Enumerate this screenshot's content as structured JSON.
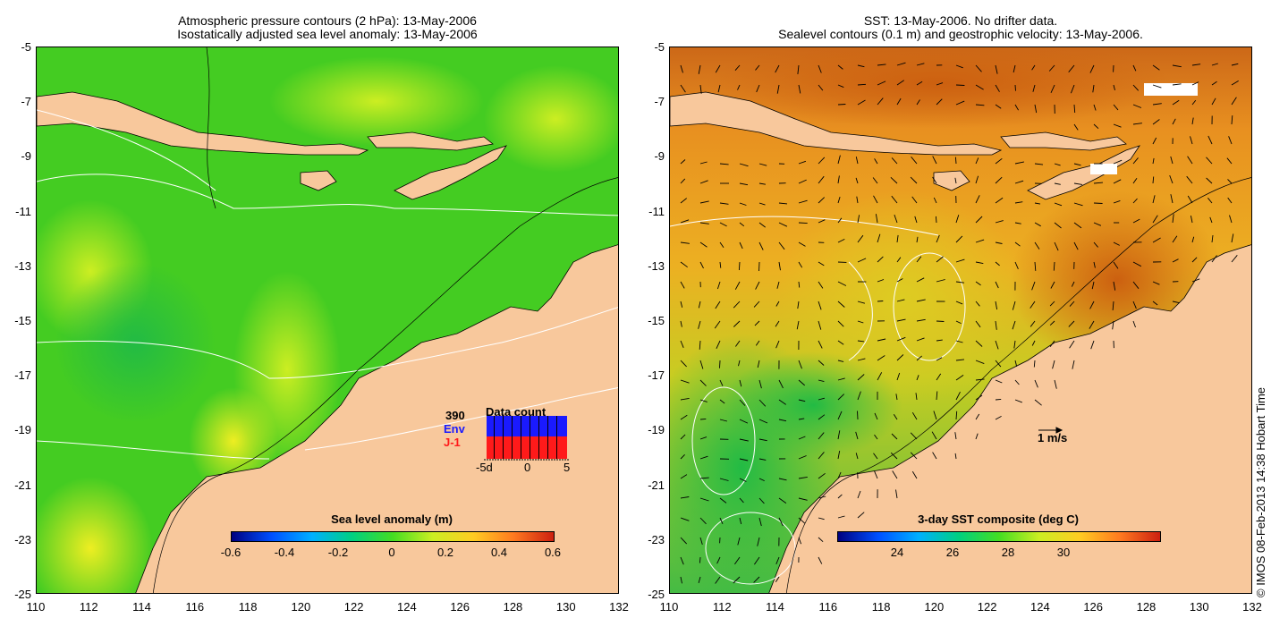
{
  "left": {
    "title_line1": "Atmospheric pressure contours (2 hPa): 13-May-2006",
    "title_line2": "Isostatically adjusted sea level anomaly: 13-May-2006",
    "colorbar_title": "Sea level anomaly (m)",
    "colorbar_ticks": [
      "-0.6",
      "-0.4",
      "-0.2",
      "0",
      "0.2",
      "0.4",
      "0.6"
    ],
    "inset": {
      "count": "390",
      "env_label": "Env",
      "j1_label": "J-1",
      "title": "Data count",
      "xticks": [
        "-5d",
        "0",
        "5"
      ],
      "env_color": "#1a1aff",
      "j1_color": "#ff1a1a"
    }
  },
  "right": {
    "title_line1": "SST: 13-May-2006. No drifter data.",
    "title_line2": "Sealevel contours (0.1 m) and geostrophic velocity: 13-May-2006.",
    "colorbar_title": "3-day SST composite (deg C)",
    "colorbar_ticks": [
      "24",
      "26",
      "28",
      "30"
    ],
    "velocity_scale_label": "1 m/s"
  },
  "axes": {
    "y_ticks": [
      "-5",
      "-7",
      "-9",
      "-11",
      "-13",
      "-15",
      "-17",
      "-19",
      "-21",
      "-23",
      "-25"
    ],
    "x_ticks": [
      "110",
      "112",
      "114",
      "116",
      "118",
      "120",
      "122",
      "124",
      "126",
      "128",
      "130",
      "132"
    ]
  },
  "credit": "© IMOS 08-Feb-2013 14:38 Hobart Time",
  "colors": {
    "land": "#f8c89c",
    "sla_ocean": "#44dd22",
    "sst_ocean": "#f0a020"
  }
}
